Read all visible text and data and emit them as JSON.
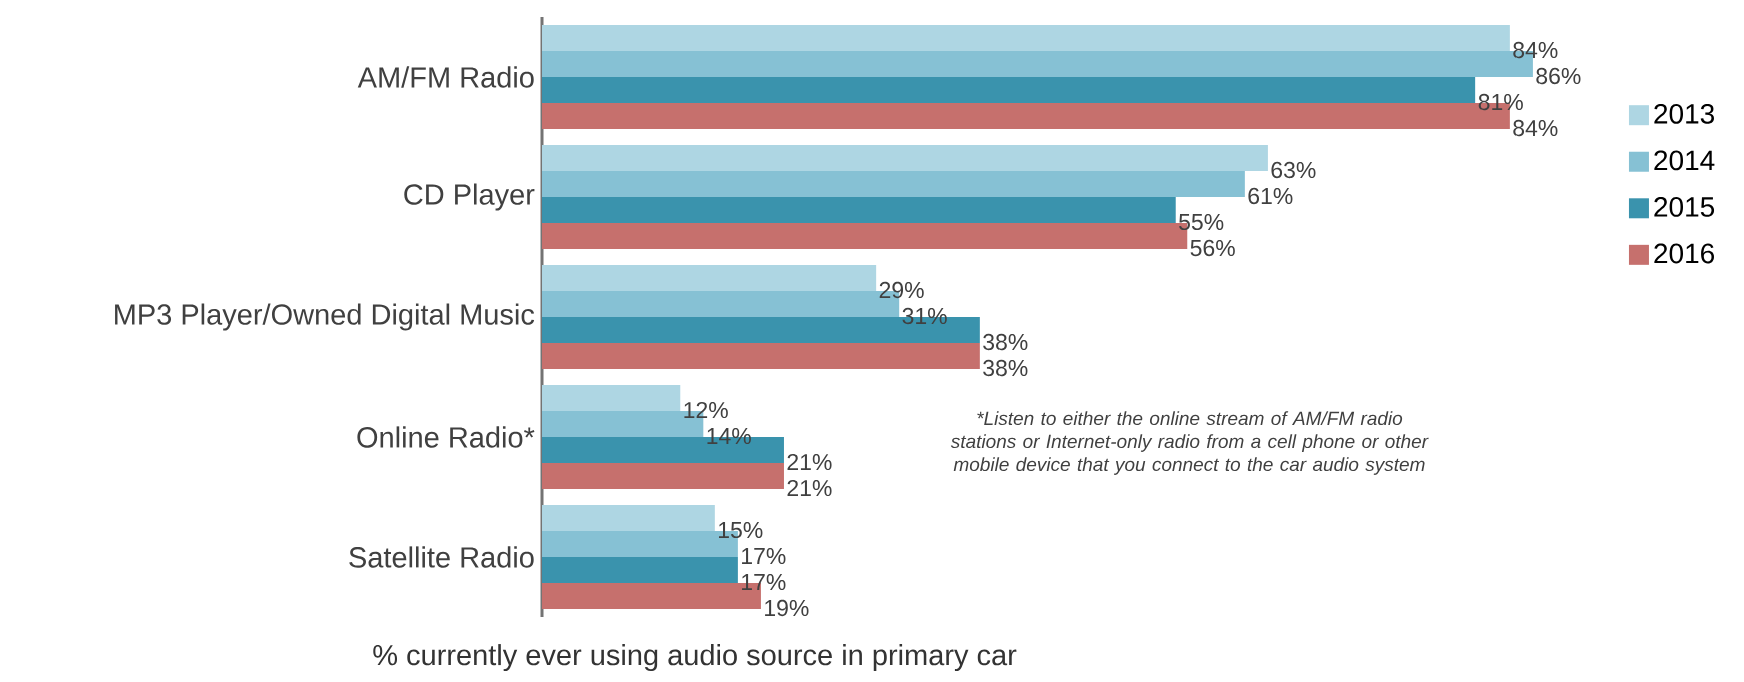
{
  "chart_data": {
    "type": "bar",
    "orientation": "horizontal",
    "xlabel": "% currently ever using audio source in primary car",
    "categories": [
      "AM/FM Radio",
      "CD Player",
      "MP3 Player/Owned Digital Music",
      "Online Radio*",
      "Satellite Radio"
    ],
    "series": [
      {
        "name": "2013",
        "color": "#aed6e3",
        "values": [
          84,
          63,
          29,
          12,
          15
        ],
        "value_labels": [
          "84%",
          "63%",
          "29%",
          "12%",
          "15%"
        ]
      },
      {
        "name": "2014",
        "color": "#86c1d4",
        "values": [
          86,
          61,
          31,
          14,
          17
        ],
        "value_labels": [
          "86%",
          "61%",
          "31%",
          "14%",
          "17%"
        ]
      },
      {
        "name": "2015",
        "color": "#3a93ad",
        "values": [
          81,
          55,
          38,
          21,
          17
        ],
        "value_labels": [
          "81%",
          "55%",
          "38%",
          "21%",
          "17%"
        ]
      },
      {
        "name": "2016",
        "color": "#c6706d",
        "values": [
          84,
          56,
          38,
          21,
          19
        ],
        "value_labels": [
          "84%",
          "56%",
          "38%",
          "21%",
          "19%"
        ]
      }
    ],
    "annotations": [
      "*Listen to either the online stream of AM/FM radio stations or Internet-only radio from a cell phone or other mobile device that you connect to the car audio system"
    ],
    "legend": "right"
  }
}
